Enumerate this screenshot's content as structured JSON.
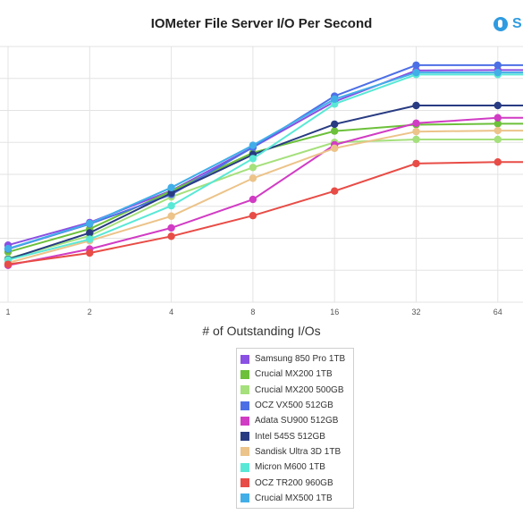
{
  "header": {
    "brand_text": "S",
    "brand_color": "#2f9be0",
    "brand_icon": "logo-icon"
  },
  "chart_data": {
    "type": "line",
    "title": "IOMeter File Server I/O Per Second",
    "xlabel": "# of Outstanding I/Os",
    "ylabel": "",
    "x": [
      "1",
      "2",
      "4",
      "8",
      "16",
      "32",
      "64"
    ],
    "grid": true,
    "legend_placement": "bottom-center",
    "series": [
      {
        "name": "Samsung 850 Pro 1TB",
        "color": "#8a4fe3",
        "values": [
          11600,
          16200,
          22700,
          31500,
          40800,
          47100,
          47200
        ]
      },
      {
        "name": "Crucial MX200 1TB",
        "color": "#6cc03a",
        "values": [
          10200,
          14900,
          22600,
          30400,
          34800,
          36100,
          36300
        ]
      },
      {
        "name": "Crucial MX200 500GB",
        "color": "#a5e07c",
        "values": [
          8900,
          13500,
          21400,
          27400,
          32500,
          33100,
          33100
        ]
      },
      {
        "name": "OCZ VX500 512GB",
        "color": "#4d6fe6",
        "values": [
          10800,
          15900,
          21900,
          31500,
          41900,
          48200,
          48200
        ]
      },
      {
        "name": "Adata SU900 512GB",
        "color": "#d13cc4",
        "values": [
          7500,
          10800,
          15100,
          20900,
          32000,
          36400,
          37500
        ]
      },
      {
        "name": "Intel 545S 512GB",
        "color": "#283b82",
        "values": [
          8700,
          14100,
          22200,
          30000,
          36200,
          40000,
          40000
        ]
      },
      {
        "name": "Sandisk Ultra 3D 1TB",
        "color": "#ecc389",
        "values": [
          8000,
          12500,
          17500,
          25200,
          31300,
          34700,
          34900
        ]
      },
      {
        "name": "Micron M600 1TB",
        "color": "#5ae8d6",
        "values": [
          8600,
          12800,
          19600,
          29200,
          40300,
          46300,
          46300
        ]
      },
      {
        "name": "OCZ TR200 960GB",
        "color": "#e84c46",
        "values": [
          7700,
          10000,
          13400,
          17600,
          22600,
          28200,
          28500
        ]
      },
      {
        "name": "Crucial MX500 1TB",
        "color": "#42aee8",
        "values": [
          10900,
          16000,
          23300,
          31900,
          41300,
          46700,
          46700
        ]
      }
    ]
  }
}
